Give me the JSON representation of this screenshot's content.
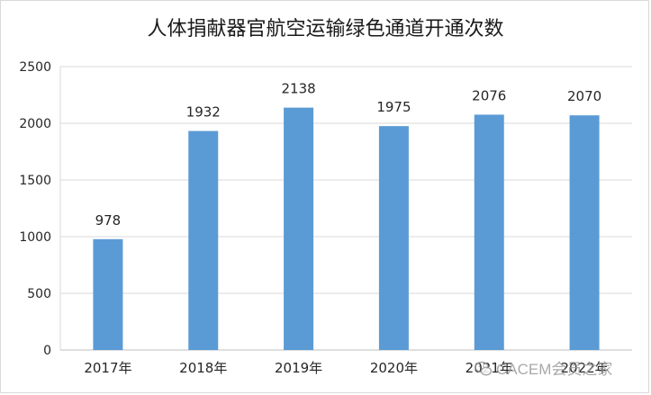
{
  "chart_data": {
    "type": "bar",
    "title": "人体捐献器官航空运输绿色通道开通次数",
    "categories": [
      "2017年",
      "2018年",
      "2019年",
      "2020年",
      "2021年",
      "2022年"
    ],
    "values": [
      978,
      1932,
      2138,
      1975,
      2076,
      2070
    ],
    "ylim": [
      0,
      2500
    ],
    "yticks": [
      0,
      500,
      1000,
      1500,
      2000,
      2500
    ],
    "grid": true,
    "legend": "none",
    "bar_color": "#5b9bd5",
    "grid_color": "#d9d9d9",
    "text_color": "#262626"
  },
  "watermark": {
    "text": "CACEM会员之家",
    "icon": "wechat-icon"
  }
}
